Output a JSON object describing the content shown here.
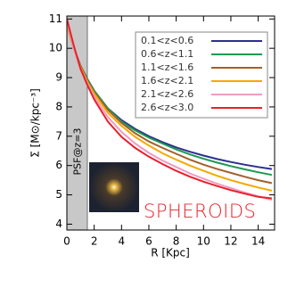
{
  "chart_data": {
    "type": "line",
    "xlabel": "R [Kpc]",
    "ylabel": "Σ [M⊙/kpc⁻³]",
    "annotations": [
      "PSF@z=3",
      "SPHEROIDS"
    ],
    "shaded_x": [
      0,
      1.5
    ],
    "x": [
      0,
      0.5,
      1,
      1.5,
      2,
      3,
      4,
      5,
      6,
      7,
      8,
      9,
      10,
      11,
      12,
      13,
      14,
      15
    ],
    "series": [
      {
        "name": "0.1<z<0.6",
        "color": "#2b2f8f",
        "values": [
          10.8,
          10.0,
          9.4,
          8.95,
          8.55,
          7.95,
          7.55,
          7.25,
          7.0,
          6.8,
          6.62,
          6.47,
          6.34,
          6.22,
          6.12,
          6.03,
          5.95,
          5.88
        ]
      },
      {
        "name": "0.6<z<1.1",
        "color": "#1a9a50",
        "values": [
          10.8,
          10.0,
          9.4,
          8.95,
          8.55,
          7.95,
          7.5,
          7.2,
          6.95,
          6.75,
          6.55,
          6.38,
          6.23,
          6.1,
          5.98,
          5.87,
          5.77,
          5.68
        ]
      },
      {
        "name": "1.1<z<1.6",
        "color": "#a0612a",
        "values": [
          10.8,
          10.0,
          9.4,
          8.9,
          8.5,
          7.9,
          7.45,
          7.1,
          6.82,
          6.6,
          6.4,
          6.2,
          6.03,
          5.88,
          5.75,
          5.62,
          5.5,
          5.4
        ]
      },
      {
        "name": "1.6<z<2.1",
        "color": "#f5a800",
        "values": [
          10.8,
          10.0,
          9.35,
          8.85,
          8.45,
          7.8,
          7.35,
          6.98,
          6.68,
          6.42,
          6.2,
          6.0,
          5.82,
          5.65,
          5.5,
          5.37,
          5.25,
          5.14
        ]
      },
      {
        "name": "2.1<z<2.6",
        "color": "#f29ac0",
        "values": [
          10.9,
          10.0,
          9.3,
          8.8,
          8.35,
          7.65,
          7.15,
          6.75,
          6.43,
          6.17,
          5.95,
          5.73,
          5.55,
          5.38,
          5.23,
          5.08,
          4.95,
          4.83
        ]
      },
      {
        "name": "2.6<z<3.0",
        "color": "#e8202a",
        "values": [
          11.0,
          10.1,
          9.3,
          8.75,
          8.25,
          7.5,
          6.98,
          6.6,
          6.3,
          6.05,
          5.82,
          5.62,
          5.45,
          5.3,
          5.16,
          5.04,
          4.93,
          4.88
        ]
      }
    ],
    "xlim": [
      0,
      15.2
    ],
    "ylim": [
      3.8,
      11.1
    ],
    "xticks": [
      0,
      2,
      4,
      6,
      8,
      10,
      12,
      14
    ],
    "yticks": [
      4,
      5,
      6,
      7,
      8,
      9,
      10,
      11
    ],
    "legend": "upper right"
  }
}
